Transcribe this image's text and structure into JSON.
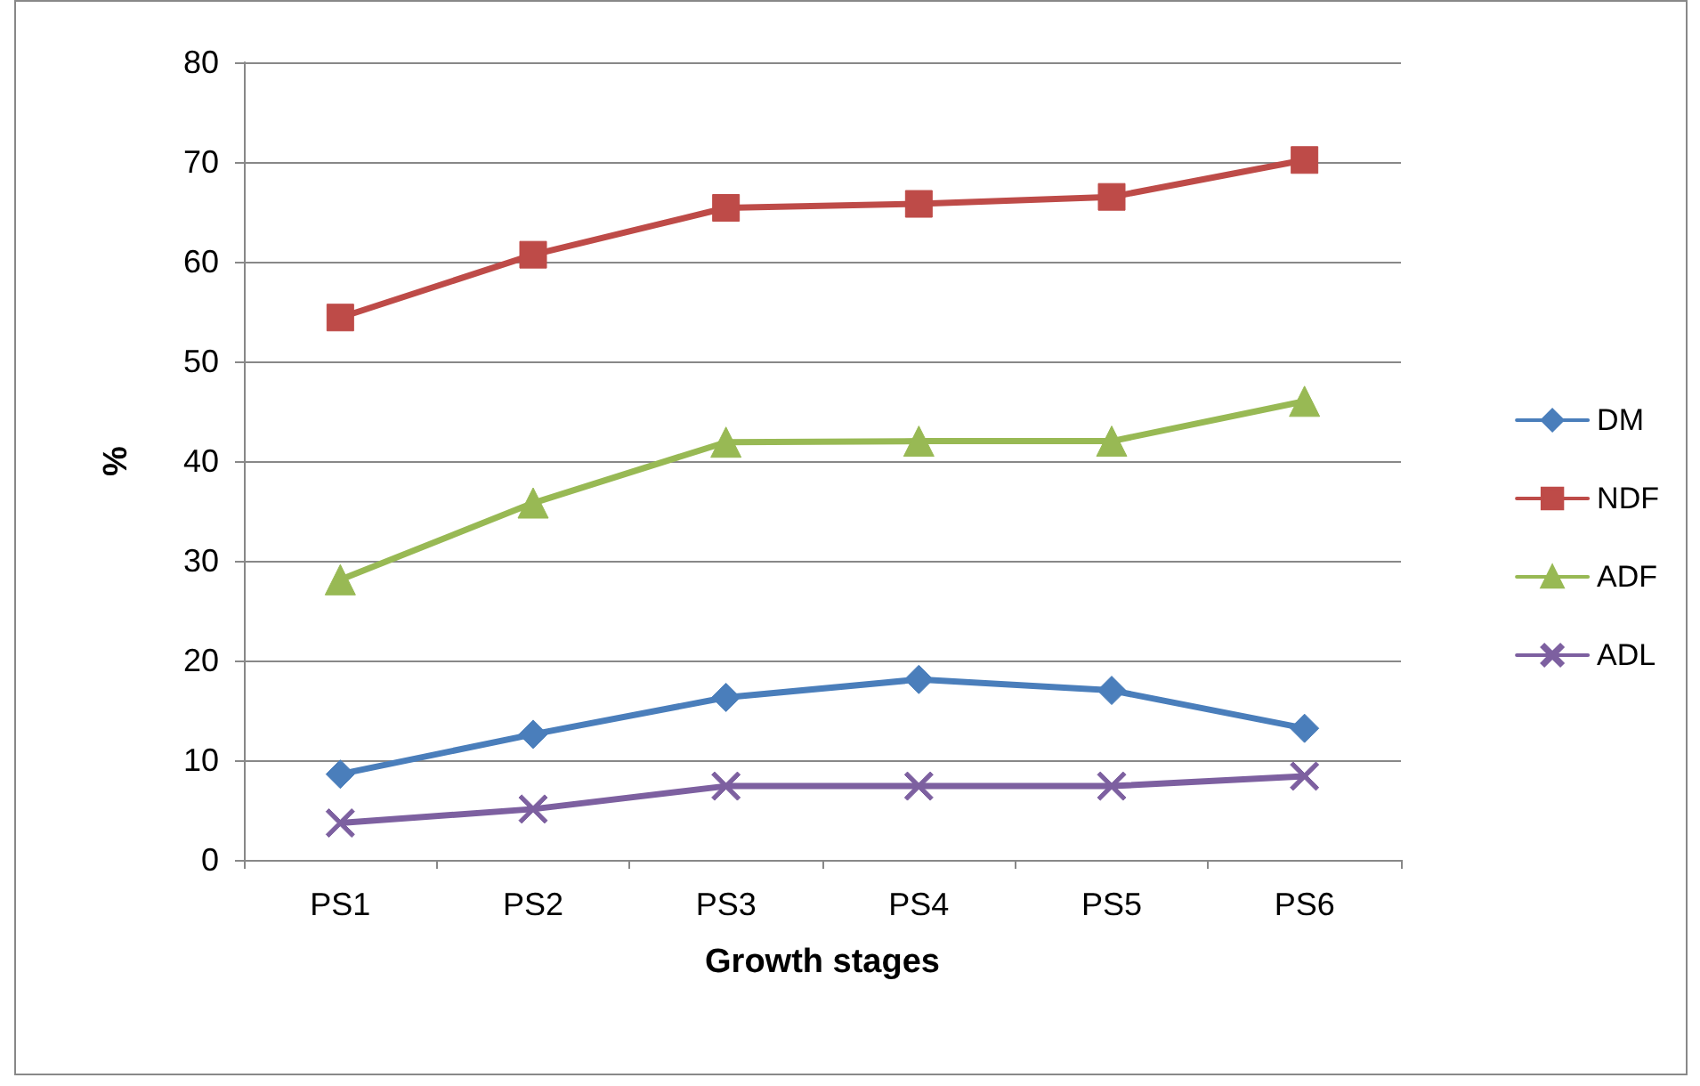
{
  "chart_data": {
    "type": "line",
    "xlabel": "Growth stages",
    "ylabel": "%",
    "categories": [
      "PS1",
      "PS2",
      "PS3",
      "PS4",
      "PS5",
      "PS6"
    ],
    "series": [
      {
        "name": "DM",
        "color": "#4a7ebb",
        "marker": "diamond",
        "values": [
          8.6,
          12.6,
          16.3,
          18.1,
          17,
          13.2
        ]
      },
      {
        "name": "NDF",
        "color": "#be4b48",
        "marker": "square",
        "values": [
          54.4,
          60.7,
          65.4,
          65.8,
          66.5,
          70.2
        ]
      },
      {
        "name": "ADF",
        "color": "#98b954",
        "marker": "triangle",
        "values": [
          28.1,
          35.8,
          41.9,
          42,
          42,
          46
        ]
      },
      {
        "name": "ADL",
        "color": "#7d60a0",
        "marker": "cross",
        "values": [
          3.7,
          5.1,
          7.4,
          7.4,
          7.4,
          8.4
        ]
      }
    ],
    "ylim": [
      0,
      80
    ],
    "yticks": [
      0,
      10,
      20,
      30,
      40,
      50,
      60,
      70,
      80
    ],
    "grid": "y",
    "legend": "right",
    "line_style": "solid"
  }
}
